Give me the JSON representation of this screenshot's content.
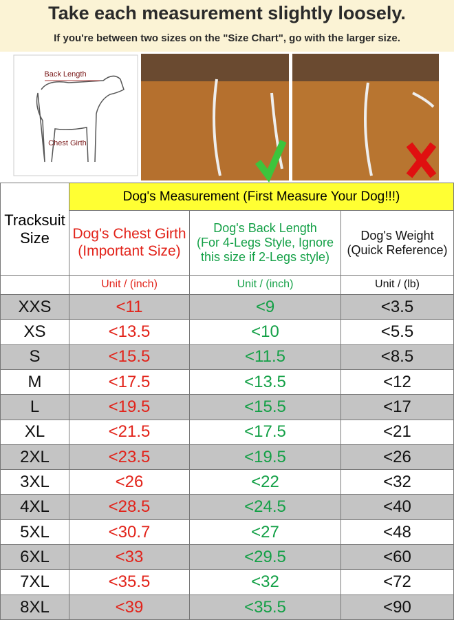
{
  "header": {
    "title": "Take each measurement slightly loosely.",
    "subtitle": "If you're between two sizes on the \"Size Chart\", go with the larger size."
  },
  "diagram": {
    "labels": [
      "Back Length",
      "Chest Girth"
    ]
  },
  "table": {
    "band": "Dog's Measurement  (First Measure Your Dog!!!)",
    "size_header": [
      "Tracksuit",
      "Size"
    ],
    "columns": [
      {
        "title": [
          "Dog's Chest Girth",
          "(Important Size)"
        ],
        "unit": "Unit / (inch)",
        "color": "#e2231a"
      },
      {
        "title": [
          "Dog's Back Length",
          "(For 4-Legs Style, Ignore",
          "this size if 2-Legs style)"
        ],
        "unit": "Unit / (inch)",
        "color": "#13a046"
      },
      {
        "title": [
          "Dog's Weight",
          "(Quick Reference)"
        ],
        "unit": "Unit / (lb)",
        "color": "#111111"
      }
    ],
    "rows": [
      [
        "XXS",
        "<11",
        "<9",
        "<3.5"
      ],
      [
        "XS",
        "<13.5",
        "<10",
        "<5.5"
      ],
      [
        "S",
        "<15.5",
        "<11.5",
        "<8.5"
      ],
      [
        "M",
        "<17.5",
        "<13.5",
        "<12"
      ],
      [
        "L",
        "<19.5",
        "<15.5",
        "<17"
      ],
      [
        "XL",
        "<21.5",
        "<17.5",
        "<21"
      ],
      [
        "2XL",
        "<23.5",
        "<19.5",
        "<26"
      ],
      [
        "3XL",
        "<26",
        "<22",
        "<32"
      ],
      [
        "4XL",
        "<28.5",
        "<24.5",
        "<40"
      ],
      [
        "5XL",
        "<30.7",
        "<27",
        "<48"
      ],
      [
        "6XL",
        "<33",
        "<29.5",
        "<60"
      ],
      [
        "7XL",
        "<35.5",
        "<32",
        "<72"
      ],
      [
        "8XL",
        "<39",
        "<35.5",
        "<90"
      ]
    ]
  }
}
